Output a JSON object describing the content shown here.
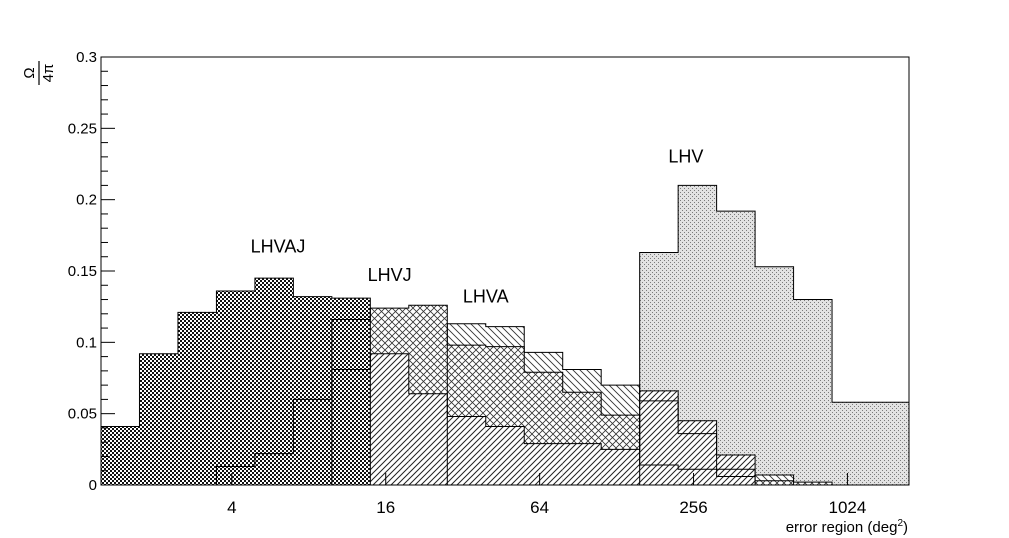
{
  "chart_data": {
    "type": "bar",
    "subtype": "overlaid step histograms",
    "xlabel": "error region (deg²)",
    "xscale": "log2",
    "xlim_log2": [
      0.3,
      10.8
    ],
    "xticks": [
      {
        "label": "4",
        "value": 4
      },
      {
        "label": "16",
        "value": 16
      },
      {
        "label": "64",
        "value": 64
      },
      {
        "label": "256",
        "value": 256
      },
      {
        "label": "1024",
        "value": 1024
      }
    ],
    "ylabel_num": "Ω",
    "ylabel_den": "4π",
    "ylim": [
      0,
      0.3
    ],
    "yticks": [
      {
        "label": "0",
        "value": 0
      },
      {
        "label": "0.05",
        "value": 0.05
      },
      {
        "label": "0.1",
        "value": 0.1
      },
      {
        "label": "0.15",
        "value": 0.15
      },
      {
        "label": "0.2",
        "value": 0.2
      },
      {
        "label": "0.25",
        "value": 0.25
      },
      {
        "label": "0.3",
        "value": 0.3
      }
    ],
    "bin_width_log2": 0.5,
    "grid": false,
    "legend": "none; series labelled by text annotations",
    "series": [
      {
        "name": "LHV",
        "fill": "dots",
        "bins_log2_start": [
          7.3,
          7.8,
          8.3,
          8.8,
          9.3,
          9.8,
          10.3
        ],
        "values": [
          0.163,
          0.21,
          0.192,
          0.153,
          0.13,
          0.058,
          0.058
        ]
      },
      {
        "name": "LHVA",
        "fill": "hatch-back",
        "bins_log2_start": [
          4.8,
          5.3,
          5.8,
          6.3,
          6.8,
          7.3,
          7.8,
          8.3,
          8.8
        ],
        "values": [
          0.113,
          0.111,
          0.093,
          0.081,
          0.07,
          0.059,
          0.036,
          0.011,
          0.007
        ]
      },
      {
        "name": "LHVJ",
        "fill": "crosshatch",
        "bins_log2_start": [
          3.3,
          3.8,
          4.3,
          4.8,
          5.3,
          5.8,
          6.3,
          6.8,
          7.3,
          7.8,
          8.3,
          8.8,
          9.3
        ],
        "values": [
          0.116,
          0.124,
          0.126,
          0.098,
          0.097,
          0.079,
          0.065,
          0.049,
          0.014,
          0.011,
          0.006,
          0.003,
          0.002
        ]
      },
      {
        "name": "",
        "fill": "hatch-forward",
        "bins_log2_start": [
          1.8,
          2.3,
          2.8,
          3.3,
          3.8,
          4.3,
          4.8,
          5.3,
          5.8,
          6.3,
          6.8,
          7.3,
          7.8,
          8.3
        ],
        "values": [
          0.013,
          0.022,
          0.06,
          0.081,
          0.092,
          0.064,
          0.048,
          0.041,
          0.029,
          0.029,
          0.025,
          0.066,
          0.045,
          0.021
        ]
      },
      {
        "name": "LHVAJ",
        "fill": "checker",
        "bins_log2_start": [
          0.3,
          0.8,
          1.3,
          1.8,
          2.3,
          2.8,
          3.3
        ],
        "values": [
          0.041,
          0.092,
          0.121,
          0.136,
          0.145,
          0.132,
          0.131
        ]
      }
    ],
    "annotations": [
      {
        "text": "LHVAJ",
        "x_log2": 2.6,
        "y": 0.163
      },
      {
        "text": "LHVJ",
        "x_log2": 4.05,
        "y": 0.143
      },
      {
        "text": "LHVA",
        "x_log2": 5.3,
        "y": 0.128
      },
      {
        "text": "LHV",
        "x_log2": 7.9,
        "y": 0.226
      }
    ]
  }
}
